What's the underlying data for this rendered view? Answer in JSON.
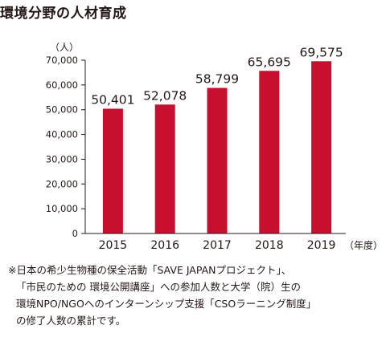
{
  "title": "環境分野の人材育成",
  "chart_data": {
    "type": "bar",
    "categories": [
      "2015",
      "2016",
      "2017",
      "2018",
      "2019"
    ],
    "values": [
      50401,
      52078,
      58799,
      65695,
      69575
    ],
    "data_labels": [
      "50,401",
      "52,078",
      "58,799",
      "65,695",
      "69,575"
    ],
    "ylabel": "（人）",
    "xlabel": "（年度）",
    "ylim": [
      0,
      70000
    ],
    "yticks": [
      0,
      10000,
      20000,
      30000,
      40000,
      50000,
      60000,
      70000
    ],
    "ytick_labels": [
      "0",
      "10,000",
      "20,000",
      "30,000",
      "40,000",
      "50,000",
      "60,000",
      "70,000"
    ],
    "grid": false,
    "bar_color": "#C8102E"
  },
  "note": {
    "lines": [
      "※日本の希少生物種の保全活動「SAVE JAPANプロジェクト」、",
      "「市民のための 環境公開講座」への参加人数と大学（院）生の",
      "環境NPO/NGOへのインターンシップ支援「CSOラーニング制度」",
      "の修了人数の累計です。"
    ]
  }
}
